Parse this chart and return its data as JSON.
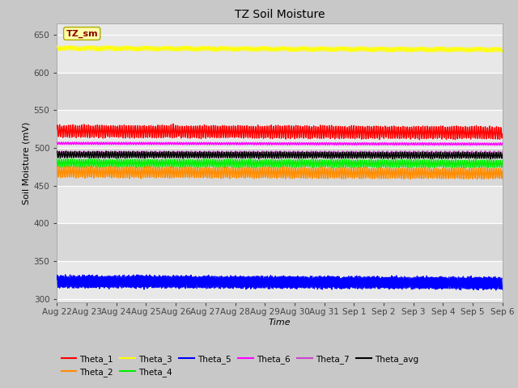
{
  "title": "TZ Soil Moisture",
  "xlabel": "Time",
  "ylabel": "Soil Moisture (mV)",
  "ylim": [
    295,
    665
  ],
  "yticks": [
    300,
    350,
    400,
    450,
    500,
    550,
    600,
    650
  ],
  "fig_bg": "#c8c8c8",
  "plot_bg_colors": [
    "#e8e8e8",
    "#d8d8d8"
  ],
  "series": {
    "Theta_1": {
      "color": "#ff0000",
      "mean": 522,
      "amp": 8,
      "freq": 2.0,
      "phase": 0.5,
      "trend": -2
    },
    "Theta_2": {
      "color": "#ff8c00",
      "mean": 468,
      "amp": 7,
      "freq": 2.0,
      "phase": 1.2,
      "trend": -2
    },
    "Theta_3": {
      "color": "#ffff00",
      "mean": 632,
      "amp": 3,
      "freq": 2.0,
      "phase": 0.8,
      "trend": -2
    },
    "Theta_4": {
      "color": "#00ee00",
      "mean": 480,
      "amp": 5,
      "freq": 2.0,
      "phase": 1.8,
      "trend": -1
    },
    "Theta_5": {
      "color": "#0000ff",
      "mean": 323,
      "amp": 8,
      "freq": 2.8,
      "phase": 0.3,
      "trend": -2
    },
    "Theta_6": {
      "color": "#ff00ff",
      "mean": 506,
      "amp": 1.5,
      "freq": 2.0,
      "phase": 2.1,
      "trend": -1
    },
    "Theta_7": {
      "color": "#cc44cc",
      "mean": 494,
      "amp": 1.5,
      "freq": 1.0,
      "phase": 1.0,
      "trend": 0
    },
    "Theta_avg": {
      "color": "#000000",
      "mean": 491,
      "amp": 4,
      "freq": 2.0,
      "phase": 1.5,
      "trend": -1
    }
  },
  "n_points": 1500,
  "n_days": 15,
  "x_ticks_labels": [
    "Aug 22",
    "Aug 23",
    "Aug 24",
    "Aug 25",
    "Aug 26",
    "Aug 27",
    "Aug 28",
    "Aug 29",
    "Aug 30",
    "Aug 31",
    "Sep 1",
    "Sep 2",
    "Sep 3",
    "Sep 4",
    "Sep 5",
    "Sep 6"
  ],
  "annotation_text": "TZ_sm",
  "annotation_color": "#880000",
  "annotation_bg": "#ffffaa",
  "annotation_edge": "#aaaa00",
  "legend_order_row1": [
    "Theta_1",
    "Theta_2",
    "Theta_3",
    "Theta_4",
    "Theta_5",
    "Theta_6"
  ],
  "legend_order_row2": [
    "Theta_7",
    "Theta_avg"
  ],
  "legend_colors": {
    "Theta_1": "#ff0000",
    "Theta_2": "#ff8c00",
    "Theta_3": "#ffff00",
    "Theta_4": "#00ee00",
    "Theta_5": "#0000ff",
    "Theta_6": "#ff00ff",
    "Theta_7": "#cc44cc",
    "Theta_avg": "#000000"
  }
}
